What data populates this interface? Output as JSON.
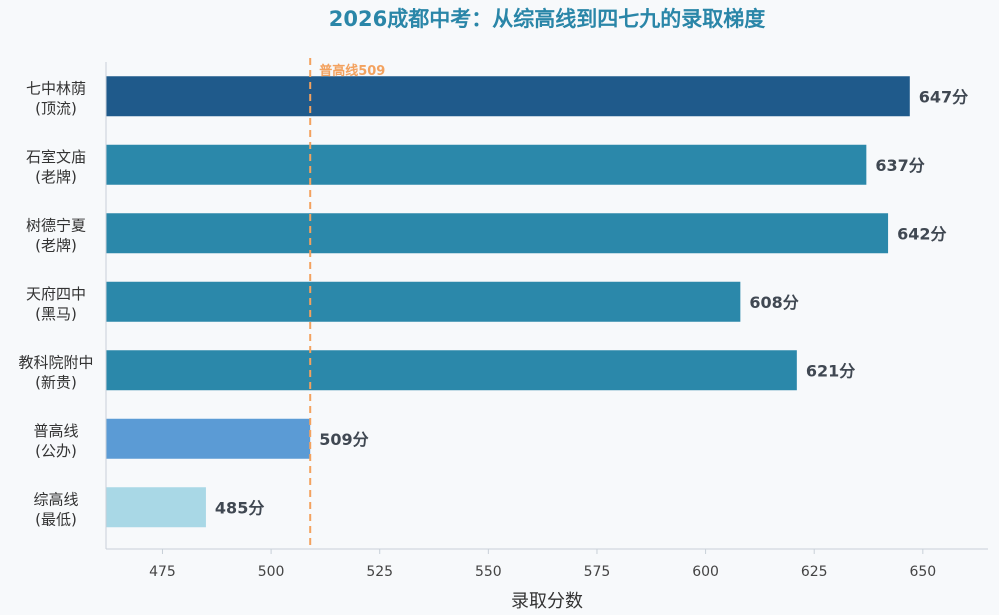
{
  "chart_data": {
    "type": "bar",
    "orientation": "horizontal",
    "title": "2026成都中考：从综高线到四七九的录取梯度",
    "xlabel": "录取分数",
    "ylabel": "",
    "xlim": [
      462,
      665
    ],
    "xticks": [
      475,
      500,
      525,
      550,
      575,
      600,
      625,
      650
    ],
    "value_suffix": "分",
    "categories": [
      {
        "name": "七中林荫",
        "tag": "(顶流)"
      },
      {
        "name": "石室文庙",
        "tag": "(老牌)"
      },
      {
        "name": "树德宁夏",
        "tag": "(老牌)"
      },
      {
        "name": "天府四中",
        "tag": "(黑马)"
      },
      {
        "name": "教科院附中",
        "tag": "(新贵)"
      },
      {
        "name": "普高线",
        "tag": "(公办)"
      },
      {
        "name": "综高线",
        "tag": "(最低)"
      }
    ],
    "values": [
      647,
      637,
      642,
      608,
      621,
      509,
      485
    ],
    "bar_colors": [
      "#1f5a8b",
      "#2b88aa",
      "#2b88aa",
      "#2b88aa",
      "#2b88aa",
      "#5b9bd5",
      "#a9d8e6"
    ],
    "reference_line": {
      "value": 509,
      "label": "普高线509",
      "color": "#f3a25f",
      "style": "dashed"
    },
    "grid": false,
    "legend": "none"
  }
}
